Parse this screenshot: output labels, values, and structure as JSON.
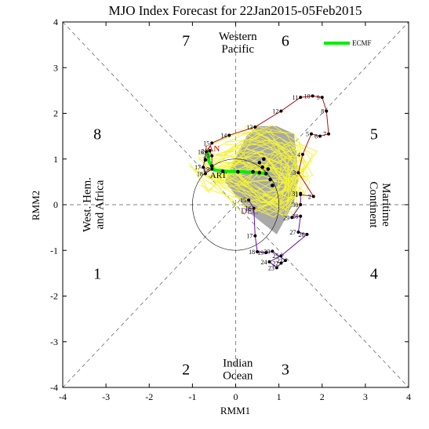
{
  "chart_data": {
    "type": "line",
    "title": "MJO Index Forecast for 22Jan2015-05Feb2015",
    "xlabel": "RMM1",
    "ylabel": "RMM2",
    "xlim": [
      -4,
      4
    ],
    "ylim": [
      -4,
      4
    ],
    "xticks": [
      "-4",
      "-3",
      "-2",
      "-1",
      "0",
      "1",
      "2",
      "3",
      "4"
    ],
    "yticks": [
      "-4",
      "-3",
      "-2",
      "-1",
      "0",
      "1",
      "2",
      "3",
      "4"
    ],
    "grid": false,
    "legend_placement": "top-right",
    "phases": [
      {
        "label": "1",
        "x": -3.2,
        "y": -1.5
      },
      {
        "label": "2",
        "x": -1.15,
        "y": -3.6
      },
      {
        "label": "3",
        "x": 1.15,
        "y": -3.6
      },
      {
        "label": "4",
        "x": 3.2,
        "y": -1.5
      },
      {
        "label": "5",
        "x": 3.2,
        "y": 1.55
      },
      {
        "label": "6",
        "x": 1.15,
        "y": 3.6
      },
      {
        "label": "7",
        "x": -1.15,
        "y": 3.6
      },
      {
        "label": "8",
        "x": -3.2,
        "y": 1.55
      }
    ],
    "regions": [
      {
        "lines": [
          "Western",
          "Pacific"
        ],
        "x": 0.05,
        "y": 3.55,
        "rotate": 0
      },
      {
        "lines": [
          "Indian",
          "Ocean"
        ],
        "x": 0.05,
        "y": -3.6,
        "rotate": 0
      },
      {
        "lines": [
          "West. Hem.",
          "and Africa"
        ],
        "x": -3.3,
        "y": 0.0,
        "rotate": -90
      },
      {
        "lines": [
          "Maritime",
          "Continent"
        ],
        "x": 3.35,
        "y": 0.0,
        "rotate": 90
      }
    ],
    "month_labels": [
      {
        "text": "JAN",
        "x": -0.55,
        "y": 1.17,
        "color": "#aa1111"
      },
      {
        "text": "DEC",
        "x": 0.32,
        "y": -0.2,
        "color": "#551a8b"
      },
      {
        "text": "ART",
        "x": -0.4,
        "y": 0.58,
        "color": "#000000"
      }
    ],
    "series": [
      {
        "name": "",
        "color": "#6a0dad",
        "points": [
          {
            "label": "15",
            "x": 0.3,
            "y": 0.1
          },
          {
            "label": "16",
            "x": 0.42,
            "y": -0.08
          },
          {
            "label": "17",
            "x": 0.45,
            "y": -0.68
          },
          {
            "label": "18",
            "x": 0.5,
            "y": -1.03
          },
          {
            "label": "19",
            "x": 0.7,
            "y": -1.05
          },
          {
            "label": "20",
            "x": 0.85,
            "y": -1.02
          },
          {
            "label": "21",
            "x": 1.15,
            "y": -1.22
          },
          {
            "label": "22",
            "x": 1.05,
            "y": -1.28
          },
          {
            "label": "23",
            "x": 0.95,
            "y": -1.38
          },
          {
            "label": "24",
            "x": 0.78,
            "y": -1.25
          },
          {
            "label": "25",
            "x": 1.05,
            "y": -1.12
          },
          {
            "label": "26",
            "x": 1.65,
            "y": -0.65
          },
          {
            "label": "27",
            "x": 1.45,
            "y": -0.6
          },
          {
            "label": "28",
            "x": 1.5,
            "y": -0.25
          },
          {
            "label": "29",
            "x": 1.3,
            "y": -0.28
          },
          {
            "label": "30",
            "x": 1.5,
            "y": 0.0
          },
          {
            "label": "31",
            "x": 1.5,
            "y": 0.25
          }
        ]
      },
      {
        "name": "",
        "color": "#aa1111",
        "points": [
          {
            "label": "1",
            "x": 1.5,
            "y": 0.22
          },
          {
            "label": "2",
            "x": 1.8,
            "y": 0.18
          },
          {
            "label": "3",
            "x": 1.45,
            "y": 0.7
          },
          {
            "label": "4",
            "x": 1.55,
            "y": 1.1
          },
          {
            "label": "5",
            "x": 1.75,
            "y": 1.55
          },
          {
            "label": "6",
            "x": 1.95,
            "y": 1.5
          },
          {
            "label": "7",
            "x": 2.15,
            "y": 1.55
          },
          {
            "label": "8",
            "x": 2.1,
            "y": 2.05
          },
          {
            "label": "9",
            "x": 2.0,
            "y": 2.35
          },
          {
            "label": "10",
            "x": 1.78,
            "y": 2.38
          },
          {
            "label": "11",
            "x": 1.5,
            "y": 2.35
          },
          {
            "label": "12",
            "x": 1.05,
            "y": 2.05
          },
          {
            "label": "13",
            "x": 0.45,
            "y": 1.7
          },
          {
            "label": "14",
            "x": -0.15,
            "y": 1.52
          },
          {
            "label": "15",
            "x": -0.55,
            "y": 1.35
          },
          {
            "label": "16",
            "x": -0.68,
            "y": 1.16
          },
          {
            "label": "17",
            "x": -0.75,
            "y": 0.82
          },
          {
            "label": "18",
            "x": -0.7,
            "y": 0.68
          },
          {
            "label": "19",
            "x": -0.55,
            "y": 0.78
          },
          {
            "label": "20",
            "x": -0.55,
            "y": 1.07
          },
          {
            "label": "21",
            "x": -0.6,
            "y": 1.18
          }
        ]
      },
      {
        "name": "ECMF",
        "color": "#00ee00",
        "points": [
          {
            "label": "",
            "x": -0.65,
            "y": 1.2
          },
          {
            "label": "",
            "x": -0.62,
            "y": 0.95
          },
          {
            "label": "",
            "x": -0.5,
            "y": 0.76
          },
          {
            "label": "",
            "x": -0.2,
            "y": 0.73
          },
          {
            "label": "",
            "x": 0.15,
            "y": 0.72
          },
          {
            "label": "",
            "x": 0.5,
            "y": 0.7
          },
          {
            "label": "",
            "x": 0.75,
            "y": 0.68
          }
        ]
      }
    ],
    "forecast_black_points": [
      {
        "x": -0.7,
        "y": 0.98
      },
      {
        "x": -0.55,
        "y": 0.85
      },
      {
        "x": -0.3,
        "y": 0.73
      },
      {
        "x": 0.05,
        "y": 0.72
      },
      {
        "x": 0.4,
        "y": 0.72
      },
      {
        "x": 0.55,
        "y": 0.7
      },
      {
        "x": 0.7,
        "y": 0.68
      },
      {
        "x": 0.75,
        "y": 0.78
      },
      {
        "x": 0.62,
        "y": 0.82
      },
      {
        "x": 0.8,
        "y": 0.55
      },
      {
        "x": 0.85,
        "y": 0.42
      },
      {
        "x": 0.55,
        "y": 0.92
      },
      {
        "x": 0.65,
        "y": 1.0
      }
    ],
    "ensemble_band_polygon": [
      {
        "x": -0.25,
        "y": 0.5
      },
      {
        "x": 0.0,
        "y": 1.05
      },
      {
        "x": 0.25,
        "y": 1.5
      },
      {
        "x": 0.5,
        "y": 1.72
      },
      {
        "x": 0.95,
        "y": 1.72
      },
      {
        "x": 1.35,
        "y": 1.55
      },
      {
        "x": 1.4,
        "y": 1.15
      },
      {
        "x": 1.45,
        "y": 0.6
      },
      {
        "x": 1.35,
        "y": 0.05
      },
      {
        "x": 0.95,
        "y": -0.65
      },
      {
        "x": 0.35,
        "y": -0.2
      },
      {
        "x": 0.05,
        "y": 0.15
      }
    ],
    "ensemble_spaghetti_seeds": [
      [
        [
          -0.7,
          1.0
        ],
        [
          -0.2,
          0.9
        ],
        [
          0.3,
          1.3
        ],
        [
          0.9,
          1.45
        ],
        [
          1.25,
          1.0
        ],
        [
          1.1,
          0.4
        ],
        [
          0.6,
          0.2
        ],
        [
          0.1,
          0.5
        ],
        [
          -0.4,
          0.7
        ]
      ],
      [
        [
          -0.6,
          0.8
        ],
        [
          0.0,
          0.55
        ],
        [
          0.6,
          0.1
        ],
        [
          1.0,
          -0.1
        ],
        [
          1.25,
          0.35
        ],
        [
          0.9,
          0.9
        ],
        [
          0.35,
          1.1
        ],
        [
          -0.3,
          1.0
        ]
      ],
      [
        [
          -0.8,
          0.6
        ],
        [
          -0.3,
          0.3
        ],
        [
          0.2,
          0.0
        ],
        [
          0.7,
          -0.1
        ],
        [
          1.3,
          0.2
        ],
        [
          1.4,
          0.9
        ],
        [
          0.9,
          1.3
        ],
        [
          0.2,
          1.55
        ]
      ],
      [
        [
          -0.4,
          1.2
        ],
        [
          0.1,
          1.35
        ],
        [
          0.7,
          1.6
        ],
        [
          1.3,
          1.4
        ],
        [
          1.6,
          0.8
        ],
        [
          1.1,
          0.6
        ],
        [
          0.5,
          0.7
        ],
        [
          -0.1,
          0.5
        ]
      ],
      [
        [
          -0.9,
          0.9
        ],
        [
          -0.5,
          0.45
        ],
        [
          0.0,
          0.85
        ],
        [
          0.5,
          1.05
        ],
        [
          1.0,
          0.7
        ],
        [
          1.55,
          0.45
        ],
        [
          1.2,
          -0.05
        ],
        [
          0.6,
          0.3
        ]
      ],
      [
        [
          -0.55,
          0.95
        ],
        [
          -0.1,
          1.1
        ],
        [
          0.4,
          0.6
        ],
        [
          0.8,
          0.95
        ],
        [
          1.35,
          1.2
        ],
        [
          1.7,
          1.0
        ],
        [
          1.05,
          0.2
        ],
        [
          0.45,
          0.0
        ]
      ]
    ]
  }
}
